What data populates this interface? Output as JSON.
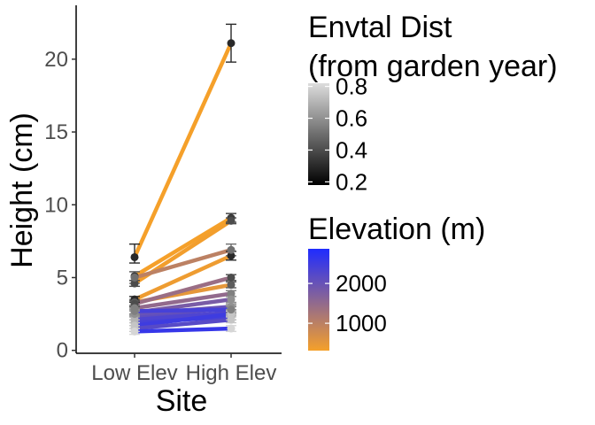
{
  "chart_data": {
    "type": "line",
    "title": "",
    "xlabel": "Site",
    "ylabel": "Height (cm)",
    "categories": [
      "Low Elev",
      "High Elev"
    ],
    "ylim": [
      -0.2,
      23.7
    ],
    "yticks": [
      0,
      5,
      10,
      15,
      20
    ],
    "grid": false,
    "series": [
      {
        "values": [
          6.4,
          21.1
        ],
        "elevation": 300,
        "envt_dist": 0.3,
        "err_low": [
          0.4,
          1.3
        ],
        "err_high": [
          0.9,
          1.3
        ]
      },
      {
        "values": [
          5.1,
          9.1
        ],
        "elevation": 300,
        "envt_dist": 0.35,
        "err_low": [
          0.3,
          0.3
        ],
        "err_high": [
          0.3,
          0.3
        ]
      },
      {
        "values": [
          4.6,
          8.9
        ],
        "elevation": 350,
        "envt_dist": 0.4,
        "err_low": [
          0.2,
          0.2
        ],
        "err_high": [
          0.2,
          0.2
        ]
      },
      {
        "values": [
          3.5,
          6.5
        ],
        "elevation": 400,
        "envt_dist": 0.3,
        "err_low": [
          0.2,
          0.3
        ],
        "err_high": [
          0.2,
          0.3
        ]
      },
      {
        "values": [
          3.3,
          4.5
        ],
        "elevation": 500,
        "envt_dist": 0.45,
        "err_low": [
          0.2,
          0.2
        ],
        "err_high": [
          0.2,
          0.2
        ]
      },
      {
        "values": [
          5.0,
          6.9
        ],
        "elevation": 1000,
        "envt_dist": 0.5,
        "err_low": [
          0.4,
          0.4
        ],
        "err_high": [
          0.4,
          0.4
        ]
      },
      {
        "values": [
          3.2,
          5.0
        ],
        "elevation": 1400,
        "envt_dist": 0.4,
        "err_low": [
          0.2,
          0.2
        ],
        "err_high": [
          0.2,
          0.2
        ]
      },
      {
        "values": [
          2.9,
          3.9
        ],
        "elevation": 1500,
        "envt_dist": 0.55,
        "err_low": [
          0.2,
          0.2
        ],
        "err_high": [
          0.2,
          0.2
        ]
      },
      {
        "values": [
          2.6,
          3.5
        ],
        "elevation": 1800,
        "envt_dist": 0.6,
        "err_low": [
          0.2,
          0.2
        ],
        "err_high": [
          0.2,
          0.2
        ]
      },
      {
        "values": [
          2.3,
          2.9
        ],
        "elevation": 2100,
        "envt_dist": 0.65,
        "err_low": [
          0.2,
          0.2
        ],
        "err_high": [
          0.2,
          0.2
        ]
      },
      {
        "values": [
          2.1,
          2.6
        ],
        "elevation": 2300,
        "envt_dist": 0.7,
        "err_low": [
          0.2,
          0.2
        ],
        "err_high": [
          0.2,
          0.2
        ]
      },
      {
        "values": [
          1.9,
          2.3
        ],
        "elevation": 2400,
        "envt_dist": 0.7,
        "err_low": [
          0.2,
          0.2
        ],
        "err_high": [
          0.2,
          0.2
        ]
      },
      {
        "values": [
          1.7,
          2.5
        ],
        "elevation": 2500,
        "envt_dist": 0.75,
        "err_low": [
          0.2,
          0.2
        ],
        "err_high": [
          0.2,
          0.2
        ]
      },
      {
        "values": [
          1.5,
          2.1
        ],
        "elevation": 2200,
        "envt_dist": 0.75,
        "err_low": [
          0.2,
          0.2
        ],
        "err_high": [
          0.2,
          0.2
        ]
      },
      {
        "values": [
          1.3,
          1.5
        ],
        "elevation": 2600,
        "envt_dist": 0.8,
        "err_low": [
          0.2,
          0.2
        ],
        "err_high": [
          0.2,
          0.2
        ]
      },
      {
        "values": [
          2.5,
          3.0
        ],
        "elevation": 2000,
        "envt_dist": 0.6,
        "err_low": [
          0.2,
          0.2
        ],
        "err_high": [
          0.2,
          0.2
        ]
      },
      {
        "values": [
          2.7,
          2.8
        ],
        "elevation": 2400,
        "envt_dist": 0.55,
        "err_low": [
          0.2,
          0.2
        ],
        "err_high": [
          0.2,
          0.2
        ]
      }
    ],
    "legend": {
      "placement": "right",
      "envt": {
        "title_lines": [
          "Envtal Dist",
          "(from garden year)"
        ],
        "labels": [
          "0.8",
          "0.6",
          "0.4",
          "0.2"
        ],
        "values": [
          0.8,
          0.6,
          0.4,
          0.2
        ],
        "range": [
          0.18,
          0.82
        ],
        "colors": {
          "low": "#000000",
          "high": "#dddddd"
        }
      },
      "elevation": {
        "title": "Elevation (m)",
        "labels": [
          "2000",
          "1000"
        ],
        "values": [
          2000,
          1000
        ],
        "range": [
          313,
          2870
        ],
        "colors": {
          "low": "#f5a02a",
          "high": "#1f2bff"
        }
      }
    }
  }
}
